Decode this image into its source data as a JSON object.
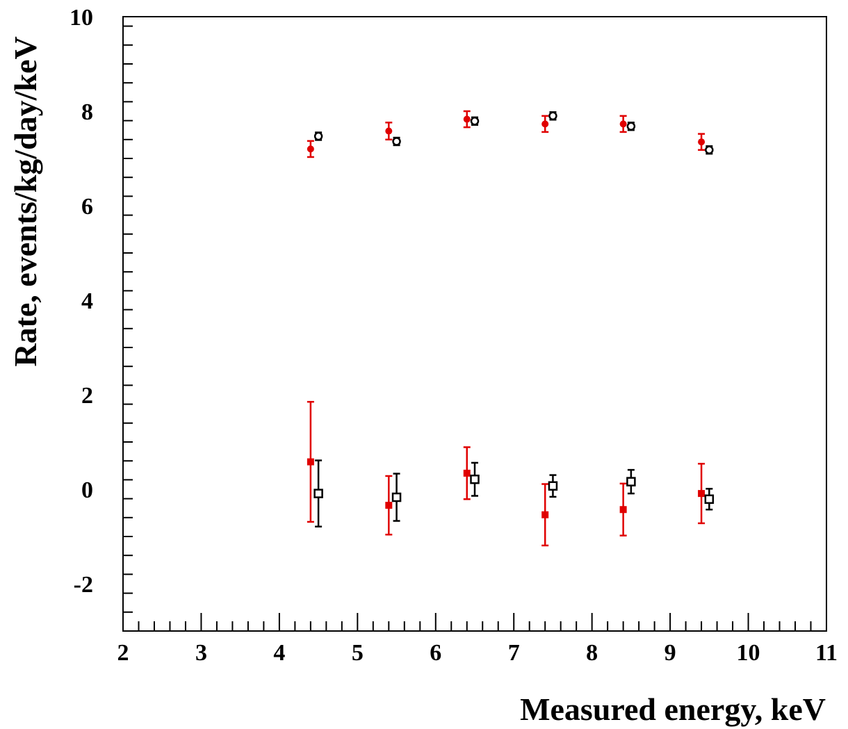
{
  "chart_data": {
    "type": "scatter",
    "xlabel": "Measured energy, keV",
    "ylabel": "Rate, events/kg/day/keV",
    "xlim": [
      2,
      11
    ],
    "ylim": [
      -3,
      10
    ],
    "x_ticks": [
      2,
      3,
      4,
      5,
      6,
      7,
      8,
      9,
      10,
      11
    ],
    "y_ticks": [
      -2,
      0,
      2,
      4,
      6,
      8,
      10
    ],
    "x_tick_labels": [
      "2",
      "3",
      "4",
      "5",
      "6",
      "7",
      "8",
      "9",
      "10",
      "11"
    ],
    "y_tick_labels": [
      "-2",
      "0",
      "2",
      "4",
      "6",
      "8",
      "10"
    ],
    "grid": false,
    "legend": "none",
    "series": [
      {
        "marker": "filled-circle",
        "color": "#e00000",
        "x": [
          4.4,
          5.4,
          6.4,
          7.4,
          8.4,
          9.4
        ],
        "y": [
          7.2,
          7.58,
          7.83,
          7.73,
          7.73,
          7.35
        ],
        "err": [
          0.17,
          0.18,
          0.17,
          0.17,
          0.17,
          0.17
        ]
      },
      {
        "marker": "open-circle",
        "color": "#000000",
        "x": [
          4.5,
          5.5,
          6.5,
          7.5,
          8.5,
          9.5
        ],
        "y": [
          7.47,
          7.36,
          7.79,
          7.9,
          7.68,
          7.18
        ],
        "err": [
          0.08,
          0.08,
          0.08,
          0.08,
          0.08,
          0.08
        ]
      },
      {
        "marker": "filled-square",
        "color": "#e00000",
        "x": [
          4.4,
          5.4,
          6.4,
          7.4,
          8.4,
          9.4
        ],
        "y": [
          0.58,
          -0.34,
          0.34,
          -0.54,
          -0.43,
          -0.09
        ],
        "err": [
          1.27,
          0.62,
          0.55,
          0.65,
          0.55,
          0.63
        ]
      },
      {
        "marker": "open-square",
        "color": "#000000",
        "x": [
          4.5,
          5.5,
          6.5,
          7.5,
          8.5,
          9.5
        ],
        "y": [
          -0.09,
          -0.17,
          0.21,
          0.07,
          0.16,
          -0.21
        ],
        "err": [
          0.7,
          0.5,
          0.35,
          0.23,
          0.25,
          0.22
        ]
      }
    ]
  }
}
